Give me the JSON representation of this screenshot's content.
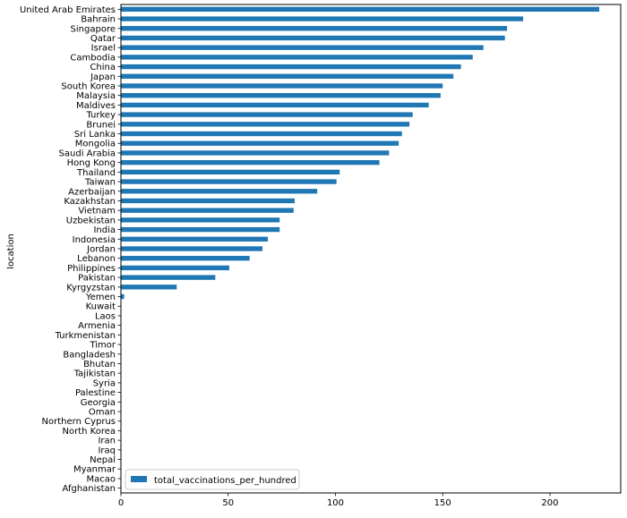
{
  "chart_data": {
    "type": "bar",
    "orientation": "horizontal",
    "ylabel": "location",
    "xlabel": "",
    "title": "",
    "xlim": [
      0,
      233
    ],
    "xticks": [
      0,
      50,
      100,
      150,
      200
    ],
    "grid": false,
    "legend": {
      "placement": "lower-left",
      "entries": [
        "total_vaccinations_per_hundred"
      ]
    },
    "series": [
      {
        "name": "total_vaccinations_per_hundred",
        "color": "#1f77b4"
      }
    ],
    "categories": [
      "United Arab Emirates",
      "Bahrain",
      "Singapore",
      "Qatar",
      "Israel",
      "Cambodia",
      "China",
      "Japan",
      "South Korea",
      "Malaysia",
      "Maldives",
      "Turkey",
      "Brunei",
      "Sri Lanka",
      "Mongolia",
      "Saudi Arabia",
      "Hong Kong",
      "Thailand",
      "Taiwan",
      "Azerbaijan",
      "Kazakhstan",
      "Vietnam",
      "Uzbekistan",
      "India",
      "Indonesia",
      "Jordan",
      "Lebanon",
      "Philippines",
      "Pakistan",
      "Kyrgyzstan",
      "Yemen",
      "Kuwait",
      "Laos",
      "Armenia",
      "Turkmenistan",
      "Timor",
      "Bangladesh",
      "Bhutan",
      "Tajikistan",
      "Syria",
      "Palestine",
      "Georgia",
      "Oman",
      "Northern Cyprus",
      "North Korea",
      "Iran",
      "Iraq",
      "Nepal",
      "Myanmar",
      "Macao",
      "Afghanistan"
    ],
    "values": [
      223,
      187.5,
      180,
      179,
      169,
      164,
      158.5,
      155,
      150,
      149,
      143.5,
      136,
      134.5,
      131,
      129.5,
      125,
      120.5,
      102,
      100.5,
      91.5,
      81,
      80.5,
      74,
      74,
      68.5,
      66,
      60,
      50.5,
      44,
      26,
      1.5,
      0,
      0,
      0,
      0,
      0,
      0,
      0,
      0,
      0,
      0,
      0,
      0,
      0,
      0,
      0,
      0,
      0,
      0,
      0,
      0
    ]
  }
}
